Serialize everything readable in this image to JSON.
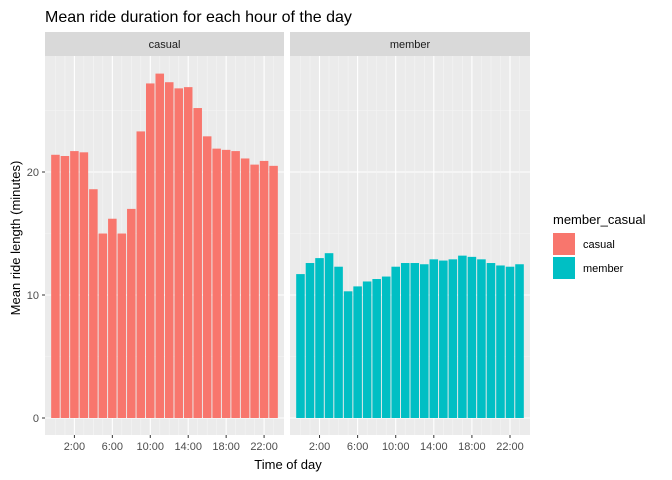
{
  "chart_data": {
    "type": "bar",
    "title": "Mean ride duration for each hour of the day",
    "xlabel": "Time of day",
    "ylabel": "Mean ride length (minutes)",
    "x_tick_labels": [
      "2:00",
      "6:00",
      "10:00",
      "14:00",
      "18:00",
      "22:00"
    ],
    "x_tick_hours": [
      2,
      6,
      10,
      14,
      18,
      22
    ],
    "y_ticks": [
      0,
      10,
      20
    ],
    "ylim": [
      0,
      29.5
    ],
    "grid": true,
    "hours": [
      0,
      1,
      2,
      3,
      4,
      5,
      6,
      7,
      8,
      9,
      10,
      11,
      12,
      13,
      14,
      15,
      16,
      17,
      18,
      19,
      20,
      21,
      22,
      23
    ],
    "legend": {
      "title": "member_casual",
      "position": "right"
    },
    "series": [
      {
        "name": "casual",
        "color": "#F8766D",
        "values": [
          21.4,
          21.3,
          21.7,
          21.6,
          18.6,
          15.0,
          16.2,
          15.0,
          17.0,
          23.3,
          27.2,
          28.0,
          27.3,
          26.8,
          26.9,
          25.2,
          22.9,
          21.9,
          21.8,
          21.7,
          21.1,
          20.6,
          20.9,
          20.5
        ]
      },
      {
        "name": "member",
        "color": "#00BFC4",
        "values": [
          11.7,
          12.6,
          13.0,
          13.4,
          12.3,
          10.3,
          10.7,
          11.1,
          11.3,
          11.5,
          12.3,
          12.6,
          12.6,
          12.5,
          12.9,
          12.8,
          12.9,
          13.2,
          13.1,
          12.9,
          12.6,
          12.4,
          12.3,
          12.5
        ]
      }
    ]
  }
}
